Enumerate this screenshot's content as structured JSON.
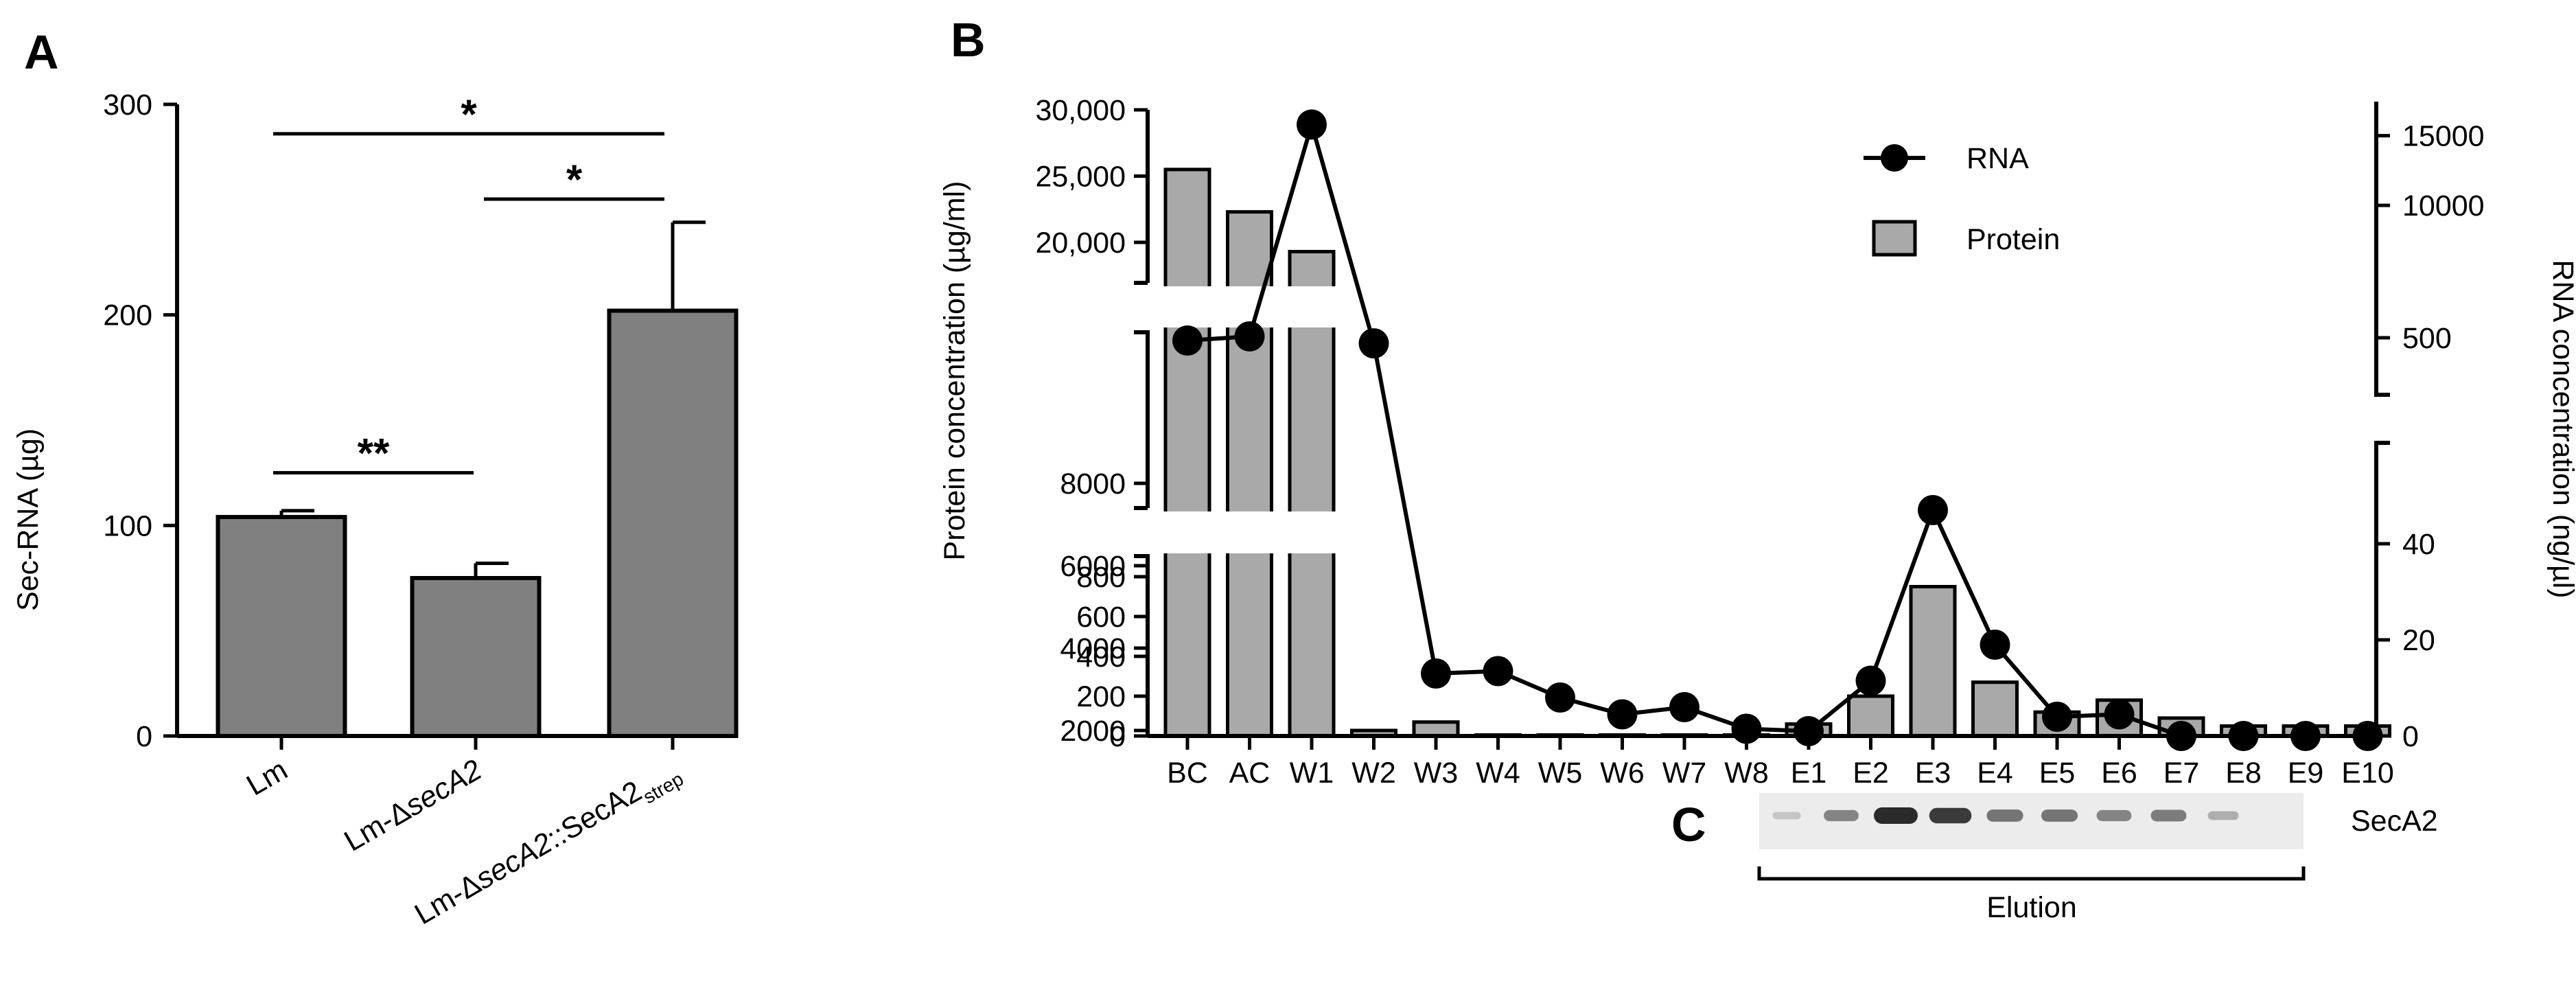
{
  "colors": {
    "bar_fill_a": "#808080",
    "bar_fill_b": "#a9a9a9",
    "line": "#000000",
    "axis": "#000000",
    "band": "#2a2a2a"
  },
  "panel_labels": {
    "a": "A",
    "b": "B",
    "c": "C"
  },
  "chart_data": [
    {
      "id": "A",
      "type": "bar",
      "ylabel": "Sec-RNA (µg)",
      "xlabel": "",
      "ylim": [
        0,
        300
      ],
      "yticks": [
        "0",
        "100",
        "200",
        "300"
      ],
      "categories": [
        "Lm",
        "Lm-ΔsecA2",
        "Lm-ΔsecA2::SecA2strep"
      ],
      "category_labels": [
        {
          "pre": "Lm",
          "ital": "",
          "post": "",
          "sub": ""
        },
        {
          "pre": "Lm-Δ",
          "ital": "secA2",
          "post": "",
          "sub": ""
        },
        {
          "pre": "Lm-Δ",
          "ital": "secA2",
          "post": "::SecA2",
          "sub": "strep"
        }
      ],
      "values": [
        104,
        75,
        202
      ],
      "errors": [
        3,
        7,
        42
      ],
      "significance": [
        {
          "from": 0,
          "to": 1,
          "label": "**"
        },
        {
          "from": 1,
          "to": 2,
          "label": "*"
        },
        {
          "from": 0,
          "to": 2,
          "label": "*"
        }
      ]
    },
    {
      "id": "B",
      "type": "bar+line",
      "ylabel_left": "Protein concentration (µg/ml)",
      "ylabel_right": "RNA concentration (ng/µl)",
      "left_ticks": {
        "top": [
          "20,000",
          "25,000",
          "30,000"
        ],
        "middle": [
          "2000",
          "4000",
          "6000",
          "8000"
        ],
        "bottom": [
          "0",
          "200",
          "400",
          "600",
          "800"
        ]
      },
      "right_ticks": {
        "top": [
          "500",
          "10000",
          "15000"
        ],
        "bottom": [
          "0",
          "20",
          "40"
        ]
      },
      "categories": [
        "BC",
        "AC",
        "W1",
        "W2",
        "W3",
        "W4",
        "W5",
        "W6",
        "W7",
        "W8",
        "E1",
        "E2",
        "E3",
        "E4",
        "E5",
        "E6",
        "E7",
        "E8",
        "E9",
        "E10"
      ],
      "series": [
        {
          "name": "Protein",
          "type": "bar",
          "values": [
            25500,
            22300,
            19300,
            2000,
            70,
            5,
            5,
            5,
            5,
            5,
            60,
            200,
            750,
            270,
            120,
            180,
            90,
            50,
            50,
            50
          ]
        },
        {
          "name": "RNA",
          "type": "line",
          "values": [
            300,
            600,
            15800,
            100,
            13,
            13.5,
            8,
            4.5,
            6,
            1.5,
            1,
            11.5,
            47,
            19,
            4,
            4.5,
            0,
            0,
            0,
            0
          ]
        }
      ],
      "legend": {
        "position": "top-right",
        "items": [
          "RNA",
          "Protein"
        ]
      }
    },
    {
      "id": "C",
      "type": "blot",
      "band_label": "SecA2",
      "bracket_label": "Elution",
      "lanes": [
        "E1",
        "E2",
        "E3",
        "E4",
        "E5",
        "E6",
        "E7",
        "E8",
        "E9",
        "E10"
      ],
      "band_intensity": [
        0.05,
        0.45,
        1.0,
        0.9,
        0.55,
        0.55,
        0.45,
        0.5,
        0.2,
        0.0
      ]
    }
  ]
}
